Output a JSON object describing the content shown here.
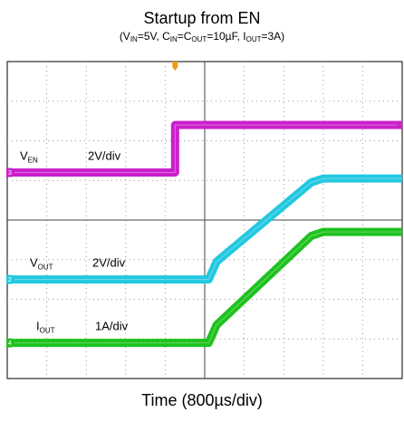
{
  "chart_data": {
    "type": "line",
    "title": "Startup from EN",
    "subtitle": {
      "prefix": "(V",
      "vin_sub": "IN",
      "vin_val": "=5V, C",
      "cin_sub": "IN",
      "eq": "=C",
      "cout_sub": "OUT",
      "cout_val": "=10µF, I",
      "iout_sub": "OUT",
      "iout_val": "=3A)"
    },
    "xlabel": "Time (800µs/div)",
    "x_units": "div",
    "y_units": "div",
    "xlim": [
      0,
      10
    ],
    "ylim": [
      0,
      8
    ],
    "grid": true,
    "trigger_position_div": 4.25,
    "series": [
      {
        "name": "V",
        "name_sub": "EN",
        "scale": "2V/div",
        "channel": "3",
        "color": "#cc1fcc",
        "x": [
          0,
          4.25,
          4.25,
          10
        ],
        "y": [
          5.2,
          5.2,
          6.4,
          6.4
        ]
      },
      {
        "name": "V",
        "name_sub": "OUT",
        "scale": "2V/div",
        "channel": "2",
        "color": "#22c8e0",
        "x": [
          0,
          5.1,
          5.3,
          7.7,
          8.0,
          10
        ],
        "y": [
          2.5,
          2.5,
          2.95,
          4.95,
          5.05,
          5.05
        ]
      },
      {
        "name": "I",
        "name_sub": "OUT",
        "scale": "1A/div",
        "channel": "4",
        "color": "#1ec21e",
        "x": [
          0,
          5.1,
          5.3,
          7.7,
          8.0,
          10
        ],
        "y": [
          0.9,
          0.9,
          1.35,
          3.6,
          3.7,
          3.7
        ]
      }
    ]
  }
}
